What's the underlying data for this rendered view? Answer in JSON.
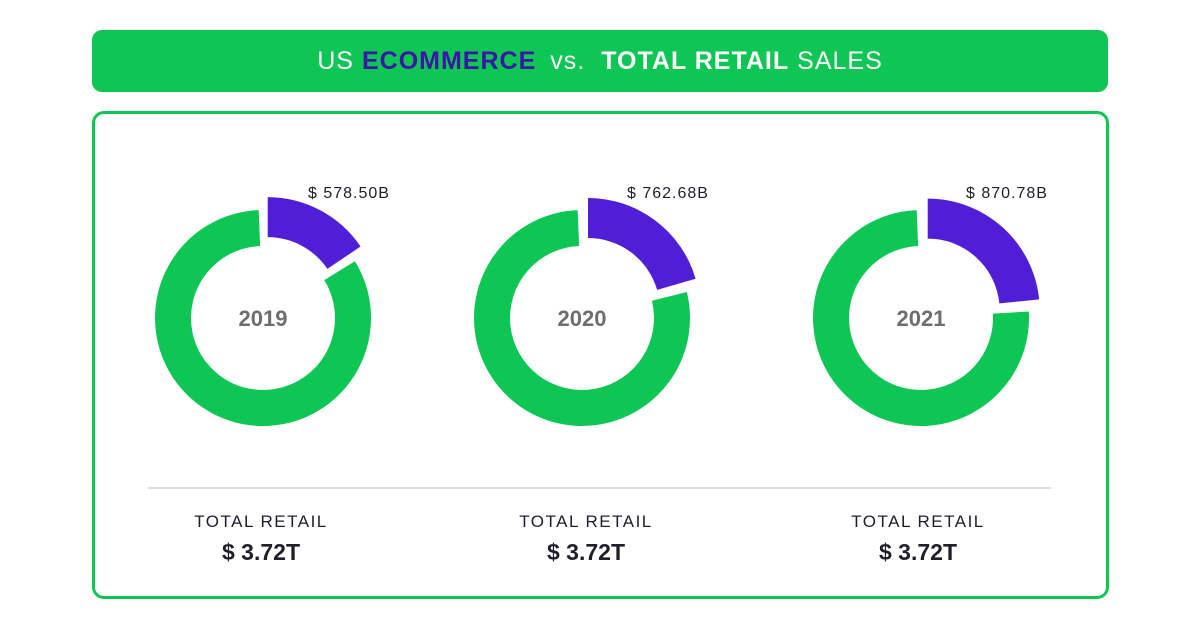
{
  "title": {
    "part1": "US",
    "part2": "ECOMMERCE",
    "part3": "vs.",
    "part4": "TOTAL RETAIL",
    "part5": "SALES"
  },
  "colors": {
    "brand_green": "#0ec653",
    "ecommerce_purple": "#4f1ed6",
    "title_accent": "#3a16a6",
    "year_text": "#6e6e6e"
  },
  "chart_data": [
    {
      "type": "pie",
      "title": "2019",
      "series": [
        {
          "name": "",
          "values": [
            578.5,
            3141.5
          ]
        }
      ],
      "labels": [
        "$ 578.50B",
        ""
      ],
      "total_label": "TOTAL RETAIL",
      "total_value": "$ 3.72T"
    },
    {
      "type": "pie",
      "title": "2020",
      "series": [
        {
          "name": "",
          "values": [
            762.68,
            2957.32
          ]
        }
      ],
      "labels": [
        "$ 762.68B",
        ""
      ],
      "total_label": "TOTAL RETAIL",
      "total_value": "$ 3.72T"
    },
    {
      "type": "pie",
      "title": "2021",
      "series": [
        {
          "name": "",
          "values": [
            870.78,
            2849.22
          ]
        }
      ],
      "labels": [
        "$ 870.78B",
        ""
      ],
      "total_label": "TOTAL RETAIL",
      "total_value": "$ 3.72T"
    }
  ]
}
